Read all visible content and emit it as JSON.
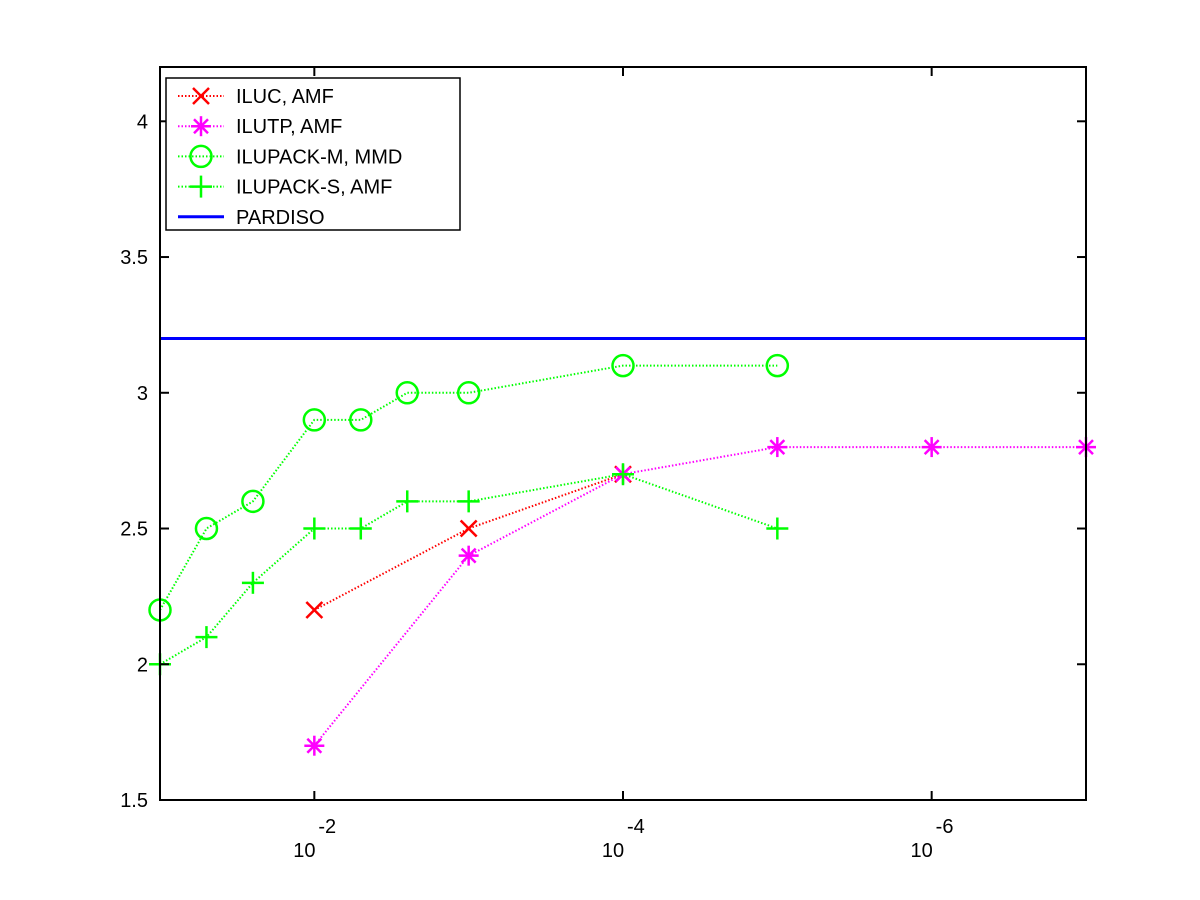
{
  "chart_data": {
    "type": "line",
    "x_scale": "log",
    "x_direction": "reversed",
    "xlim": [
      0.1,
      1e-07
    ],
    "ylim": [
      1.5,
      4.2
    ],
    "grid": false,
    "legend_placement": "top-left",
    "x_ticks": [
      {
        "value": 0.01,
        "base": "10",
        "exp": "-2"
      },
      {
        "value": 0.0001,
        "base": "10",
        "exp": "-4"
      },
      {
        "value": 1e-06,
        "base": "10",
        "exp": "-6"
      }
    ],
    "y_ticks": [
      {
        "value": 1.5,
        "label": "1.5"
      },
      {
        "value": 2,
        "label": "2"
      },
      {
        "value": 2.5,
        "label": "2.5"
      },
      {
        "value": 3,
        "label": "3"
      },
      {
        "value": 3.5,
        "label": "3.5"
      },
      {
        "value": 4,
        "label": "4"
      }
    ],
    "series": [
      {
        "name": "ILUC, AMF",
        "color": "#ff0000",
        "marker": "x",
        "line": "dotted",
        "x": [
          0.01,
          0.001,
          0.0001
        ],
        "y": [
          2.2,
          2.5,
          2.7
        ]
      },
      {
        "name": "ILUTP, AMF",
        "color": "#ff00ff",
        "marker": "asterisk",
        "line": "dotted",
        "x": [
          0.01,
          0.001,
          0.0001,
          1e-05,
          1e-06,
          1e-07
        ],
        "y": [
          1.7,
          2.4,
          2.7,
          2.8,
          2.8,
          2.8
        ]
      },
      {
        "name": "ILUPACK-M, MMD",
        "color": "#00ff00",
        "marker": "circle",
        "line": "dotted",
        "x": [
          0.1,
          0.05,
          0.025,
          0.01,
          0.005,
          0.0025,
          0.001,
          0.0001,
          1e-05
        ],
        "y": [
          2.2,
          2.5,
          2.6,
          2.9,
          2.9,
          3.0,
          3.0,
          3.1,
          3.1
        ]
      },
      {
        "name": "ILUPACK-S, AMF",
        "color": "#00ff00",
        "marker": "plus",
        "line": "dotted",
        "x": [
          0.1,
          0.05,
          0.025,
          0.01,
          0.005,
          0.0025,
          0.001,
          0.0001,
          1e-05
        ],
        "y": [
          2.0,
          2.1,
          2.3,
          2.5,
          2.5,
          2.6,
          2.6,
          2.7,
          2.5
        ]
      },
      {
        "name": "PARDISO",
        "color": "#0000ff",
        "marker": "none",
        "line": "solid",
        "x": [
          0.1,
          1e-07
        ],
        "y": [
          3.2,
          3.2
        ]
      }
    ]
  }
}
